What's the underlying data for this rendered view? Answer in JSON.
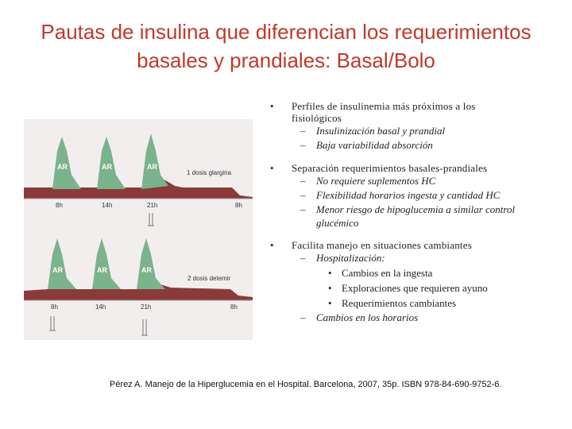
{
  "title": {
    "line1": "Pautas de insulina que diferencian los requerimientos",
    "line2": "basales y prandiales: Basal/Bolo"
  },
  "figure": {
    "panel1": {
      "peak_labels": [
        "AR",
        "AR",
        "AR"
      ],
      "dose_label": "1 dosis glargina",
      "ticks": [
        "8h",
        "14h",
        "21h",
        "8h"
      ]
    },
    "panel2": {
      "peak_labels": [
        "AR",
        "AR",
        "AR"
      ],
      "dose_label": "2 dosis detemir",
      "ticks": [
        "8h",
        "14h",
        "21h",
        "8h"
      ]
    },
    "colors": {
      "peak": "#7bb38c",
      "basal": "#8b3a3a",
      "background": "#f2eeee"
    }
  },
  "bullets": {
    "b1": {
      "text_line1": "Perfiles de insulinemia más próximos a los",
      "text_line2": "fisiológicos",
      "subs": [
        "Insulinización basal y prandial",
        "Baja variabilidad absorción"
      ]
    },
    "b2": {
      "text": "Separación requerimientos basales-prandiales",
      "subs": [
        "No requiere suplementos HC",
        "Flexibilidad horarios ingesta y cantidad HC",
        "Menor riesgo de hipoglucemia a similar control",
        "glucémico"
      ]
    },
    "b3": {
      "text": "Facilita manejo en situaciones cambiantes",
      "sub1": "Hospitalización:",
      "subsubs": [
        "Cambios en la ingesta",
        "Exploraciones que requieren ayuno",
        "Requerimientos cambiantes"
      ],
      "sub2": "Cambios en los horarios"
    }
  },
  "reference": "Pérez A. Manejo de la Hiperglucemia en el Hospital. Barcelona, 2007, 35p. ISBN 978-84-690-9752-6."
}
